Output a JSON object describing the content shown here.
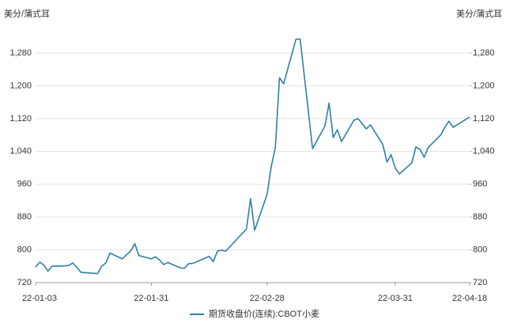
{
  "chart_data": {
    "type": "line",
    "y_label": "美分/蒲式耳",
    "y2_label": "美分/蒲式耳",
    "x": [
      "22-01-03",
      "22-01-04",
      "22-01-05",
      "22-01-06",
      "22-01-07",
      "22-01-10",
      "22-01-11",
      "22-01-12",
      "22-01-13",
      "22-01-14",
      "22-01-18",
      "22-01-19",
      "22-01-20",
      "22-01-21",
      "22-01-24",
      "22-01-25",
      "22-01-26",
      "22-01-27",
      "22-01-28",
      "22-01-31",
      "22-02-01",
      "22-02-02",
      "22-02-03",
      "22-02-04",
      "22-02-07",
      "22-02-08",
      "22-02-09",
      "22-02-10",
      "22-02-11",
      "22-02-14",
      "22-02-15",
      "22-02-16",
      "22-02-17",
      "22-02-18",
      "22-02-22",
      "22-02-23",
      "22-02-24",
      "22-02-25",
      "22-02-28",
      "22-03-01",
      "22-03-02",
      "22-03-03",
      "22-03-04",
      "22-03-07",
      "22-03-08",
      "22-03-09",
      "22-03-10",
      "22-03-11",
      "22-03-14",
      "22-03-15",
      "22-03-16",
      "22-03-17",
      "22-03-18",
      "22-03-21",
      "22-03-22",
      "22-03-23",
      "22-03-24",
      "22-03-25",
      "22-03-28",
      "22-03-29",
      "22-03-30",
      "22-03-31",
      "22-04-01",
      "22-04-04",
      "22-04-05",
      "22-04-06",
      "22-04-07",
      "22-04-08",
      "22-04-11",
      "22-04-12",
      "22-04-13",
      "22-04-14",
      "22-04-18"
    ],
    "series": [
      {
        "name": "期货收盘价(连续):CBOT小麦",
        "color": "#2f7fa8",
        "values": [
          758,
          770,
          763,
          748,
          760,
          761,
          762,
          768,
          757,
          745,
          742,
          760,
          768,
          792,
          778,
          788,
          797,
          815,
          786,
          778,
          783,
          775,
          764,
          769,
          756,
          755,
          766,
          767,
          771,
          784,
          771,
          797,
          799,
          797,
          840,
          850,
          925,
          848,
          935,
          1003,
          1050,
          1220,
          1205,
          1314,
          1314,
          1225,
          1136,
          1047,
          1102,
          1158,
          1074,
          1093,
          1064,
          1116,
          1120,
          1108,
          1095,
          1105,
          1057,
          1014,
          1032,
          1000,
          985,
          1012,
          1051,
          1045,
          1026,
          1050,
          1080,
          1099,
          1114,
          1099,
          1124
        ]
      }
    ],
    "xlim": [
      "22-01-03",
      "22-04-18"
    ],
    "xticks": [
      "22-01-03",
      "22-01-31",
      "22-02-28",
      "22-03-31",
      "22-04-18"
    ],
    "ylim": [
      720,
      1340
    ],
    "yticks": [
      720,
      800,
      880,
      960,
      {
        "value": 1040,
        "label": "1,040"
      },
      {
        "value": 1120,
        "label": "1,120"
      },
      {
        "value": 1200,
        "label": "1,200"
      },
      {
        "value": 1280,
        "label": "1,280"
      }
    ],
    "y2lim": [
      720,
      1340
    ],
    "y2ticks": [
      720,
      800,
      880,
      960,
      {
        "value": 1040,
        "label": "1,040"
      },
      {
        "value": 1120,
        "label": "1,120"
      },
      {
        "value": 1200,
        "label": "1,200"
      },
      {
        "value": 1280,
        "label": "1,280"
      }
    ],
    "grid": true,
    "legend": "bottom"
  }
}
